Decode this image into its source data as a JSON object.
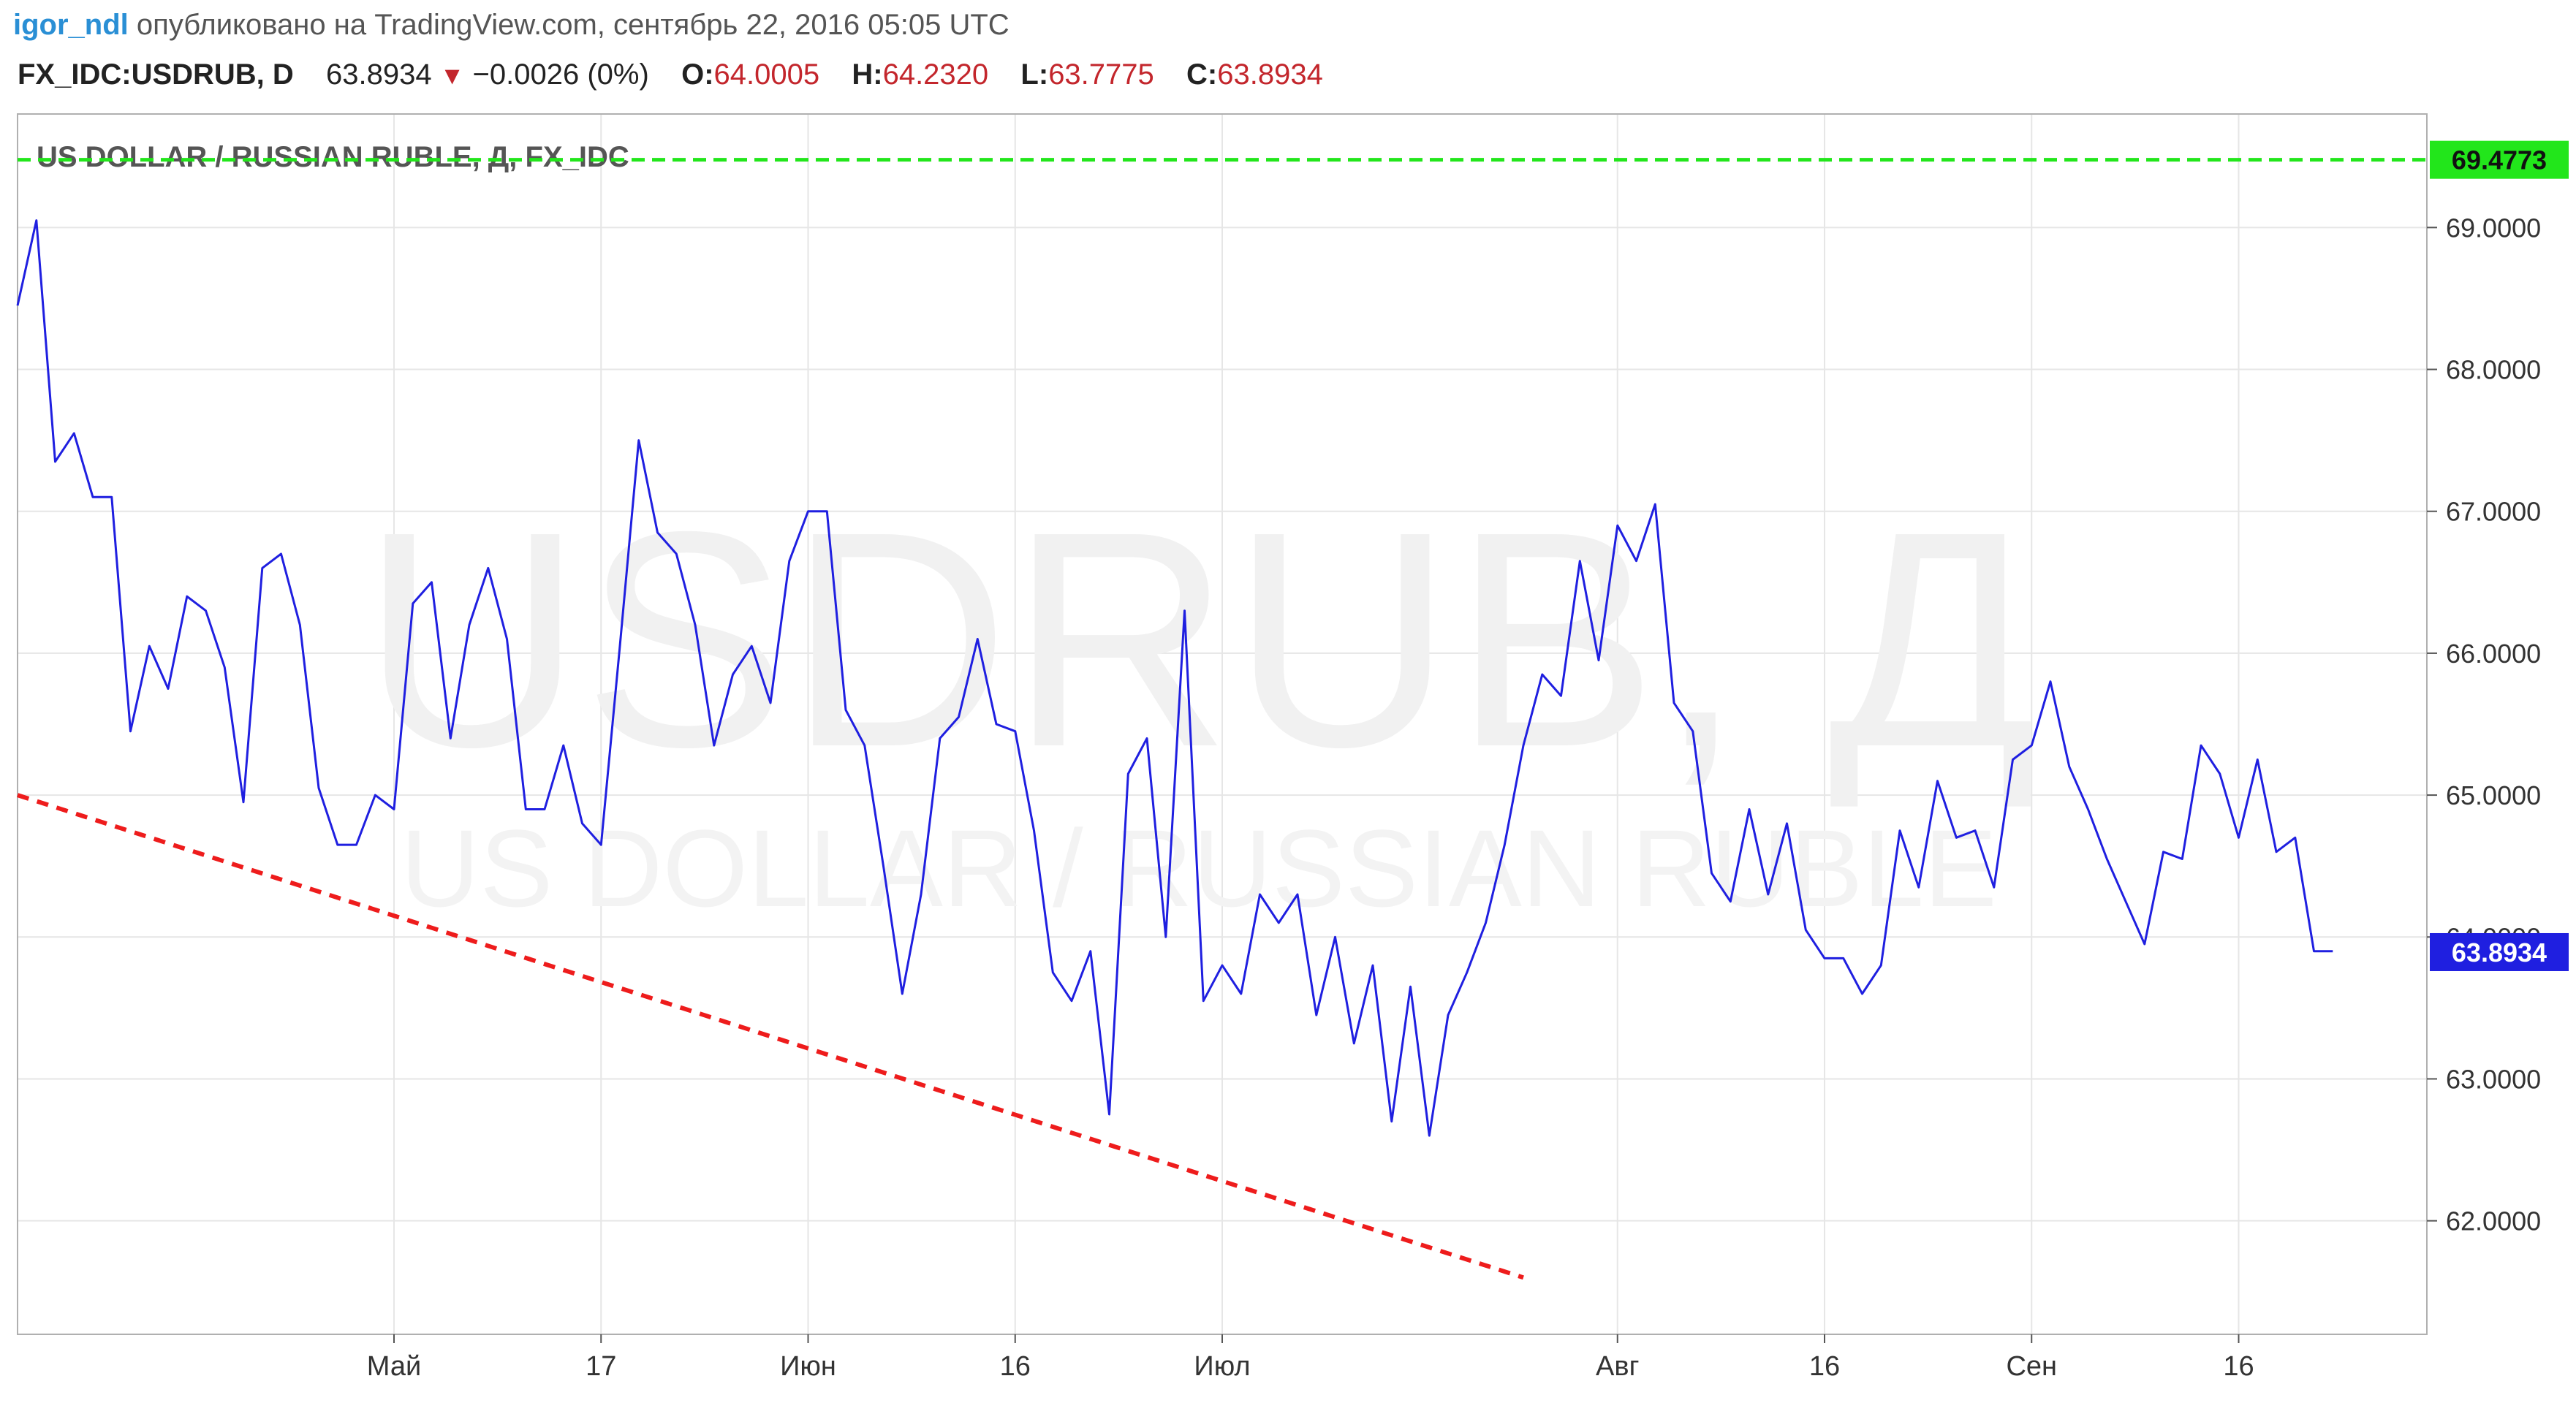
{
  "header": {
    "user": "igor_ndl",
    "published": "опубликовано на TradingView.com, сентябрь 22, 2016 05:05 UTC",
    "symbol": "FX_IDC:USDRUB, D",
    "last": "63.8934",
    "change": "−0.0026 (0%)",
    "open_label": "O:",
    "open": "64.0005",
    "high_label": "H:",
    "high": "64.2320",
    "low_label": "L:",
    "low": "63.7775",
    "close_label": "C:",
    "close": "63.8934"
  },
  "colors": {
    "price_line": "#1f1fe0",
    "resistance_line": "#22e61b",
    "trend_line": "#ee1c1c",
    "current_price_tag": "#1f1fe0",
    "grid": "#e6e6e6",
    "header_red": "#c3262c"
  },
  "chart_data": {
    "type": "line",
    "title": "US DOLLAR / RUSSIAN RUBLE, Д, FX_IDC",
    "watermark": "USDRUB, Д",
    "watermark_sub": "US DOLLAR / RUSSIAN RUBLE",
    "ylim": [
      61.2,
      69.8
    ],
    "xlim": [
      0,
      128
    ],
    "grid": true,
    "y_ticks": [
      "62.0000",
      "63.0000",
      "64.0000",
      "65.0000",
      "66.0000",
      "67.0000",
      "68.0000",
      "69.0000"
    ],
    "x_ticks": [
      {
        "label": "Май",
        "x": 20
      },
      {
        "label": "17",
        "x": 31
      },
      {
        "label": "Июн",
        "x": 42
      },
      {
        "label": "16",
        "x": 53
      },
      {
        "label": "Июл",
        "x": 64
      },
      {
        "label": "Авг",
        "x": 85
      },
      {
        "label": "16",
        "x": 96
      },
      {
        "label": "Сен",
        "x": 107
      },
      {
        "label": "16",
        "x": 118
      }
    ],
    "series": [
      {
        "values": [
          [
            0,
            68.45
          ],
          [
            1,
            69.05
          ],
          [
            2,
            67.35
          ],
          [
            3,
            67.55
          ],
          [
            4,
            67.1
          ],
          [
            5,
            67.1
          ],
          [
            6,
            65.45
          ],
          [
            7,
            66.05
          ],
          [
            8,
            65.75
          ],
          [
            9,
            66.4
          ],
          [
            10,
            66.3
          ],
          [
            11,
            65.9
          ],
          [
            12,
            64.95
          ],
          [
            13,
            66.6
          ],
          [
            14,
            66.7
          ],
          [
            15,
            66.2
          ],
          [
            16,
            65.05
          ],
          [
            17,
            64.65
          ],
          [
            18,
            64.65
          ],
          [
            19,
            65.0
          ],
          [
            20,
            64.9
          ],
          [
            21,
            66.35
          ],
          [
            22,
            66.5
          ],
          [
            23,
            65.4
          ],
          [
            24,
            66.2
          ],
          [
            25,
            66.6
          ],
          [
            26,
            66.1
          ],
          [
            27,
            64.9
          ],
          [
            28,
            64.9
          ],
          [
            29,
            65.35
          ],
          [
            30,
            64.8
          ],
          [
            31,
            64.65
          ],
          [
            32,
            66.05
          ],
          [
            33,
            67.5
          ],
          [
            34,
            66.85
          ],
          [
            35,
            66.7
          ],
          [
            36,
            66.2
          ],
          [
            37,
            65.35
          ],
          [
            38,
            65.85
          ],
          [
            39,
            66.05
          ],
          [
            40,
            65.65
          ],
          [
            41,
            66.65
          ],
          [
            42,
            67.0
          ],
          [
            43,
            67.0
          ],
          [
            44,
            65.6
          ],
          [
            45,
            65.35
          ],
          [
            46,
            64.5
          ],
          [
            47,
            63.6
          ],
          [
            48,
            64.3
          ],
          [
            49,
            65.4
          ],
          [
            50,
            65.55
          ],
          [
            51,
            66.1
          ],
          [
            52,
            65.5
          ],
          [
            53,
            65.45
          ],
          [
            54,
            64.75
          ],
          [
            55,
            63.75
          ],
          [
            56,
            63.55
          ],
          [
            57,
            63.9
          ],
          [
            58,
            62.75
          ],
          [
            59,
            65.15
          ],
          [
            60,
            65.4
          ],
          [
            61,
            64.0
          ],
          [
            62,
            66.3
          ],
          [
            63,
            63.55
          ],
          [
            64,
            63.8
          ],
          [
            65,
            63.6
          ],
          [
            66,
            64.3
          ],
          [
            67,
            64.1
          ],
          [
            68,
            64.3
          ],
          [
            69,
            63.45
          ],
          [
            70,
            64.0
          ],
          [
            71,
            63.25
          ],
          [
            72,
            63.8
          ],
          [
            73,
            62.7
          ],
          [
            74,
            63.65
          ],
          [
            75,
            62.6
          ],
          [
            76,
            63.45
          ],
          [
            77,
            63.75
          ],
          [
            78,
            64.1
          ],
          [
            79,
            64.65
          ],
          [
            80,
            65.35
          ],
          [
            81,
            65.85
          ],
          [
            82,
            65.7
          ],
          [
            83,
            66.65
          ],
          [
            84,
            65.95
          ],
          [
            85,
            66.9
          ],
          [
            86,
            66.65
          ],
          [
            87,
            67.05
          ],
          [
            88,
            65.65
          ],
          [
            89,
            65.45
          ],
          [
            90,
            64.45
          ],
          [
            91,
            64.25
          ],
          [
            92,
            64.9
          ],
          [
            93,
            64.3
          ],
          [
            94,
            64.8
          ],
          [
            95,
            64.05
          ],
          [
            96,
            63.85
          ],
          [
            97,
            63.85
          ],
          [
            98,
            63.6
          ],
          [
            99,
            63.8
          ],
          [
            100,
            64.75
          ],
          [
            101,
            64.35
          ],
          [
            102,
            65.1
          ],
          [
            103,
            64.7
          ],
          [
            104,
            64.75
          ],
          [
            105,
            64.35
          ],
          [
            106,
            65.25
          ],
          [
            107,
            65.35
          ],
          [
            108,
            65.8
          ],
          [
            109,
            65.2
          ],
          [
            110,
            64.9
          ],
          [
            111,
            64.55
          ],
          [
            112,
            64.25
          ],
          [
            113,
            63.95
          ],
          [
            114,
            64.6
          ],
          [
            115,
            64.55
          ],
          [
            116,
            65.35
          ],
          [
            117,
            65.15
          ],
          [
            118,
            64.7
          ],
          [
            119,
            65.25
          ],
          [
            120,
            64.6
          ],
          [
            121,
            64.7
          ],
          [
            122,
            63.9
          ],
          [
            123,
            63.9
          ]
        ]
      }
    ],
    "annotations": {
      "resistance_level": "69.4773",
      "current_price": "63.8934",
      "resistance_y": 69.4773,
      "current_y": 63.8934,
      "trend_line": [
        [
          0,
          65.0
        ],
        [
          80,
          61.6
        ]
      ]
    }
  }
}
